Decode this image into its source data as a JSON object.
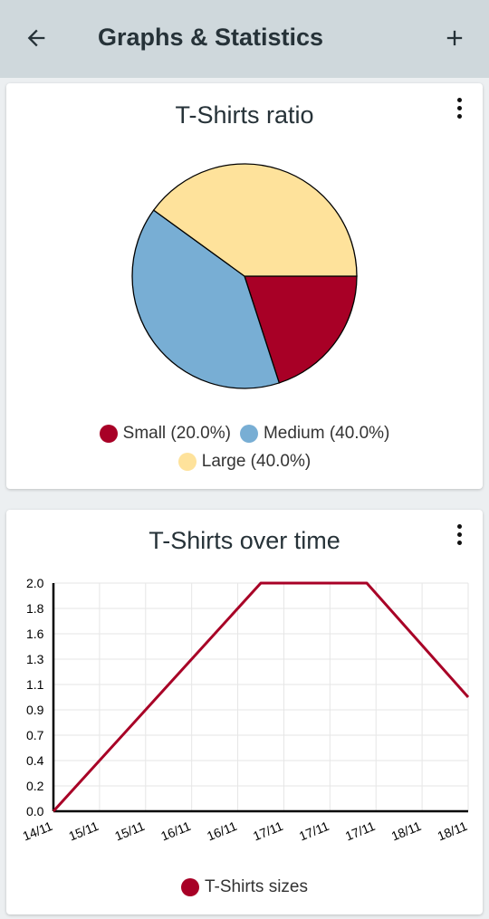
{
  "appbar": {
    "title": "Graphs & Statistics",
    "back_icon": "arrow-left-icon",
    "add_icon": "plus-icon"
  },
  "colors": {
    "small": "#a80026",
    "medium": "#78aed4",
    "large": "#fee29b",
    "line": "#a80026"
  },
  "pie_card": {
    "title": "T-Shirts ratio",
    "legend": [
      {
        "label": "Small (20.0%)",
        "color": "#a80026"
      },
      {
        "label": "Medium (40.0%)",
        "color": "#78aed4"
      },
      {
        "label": "Large (40.0%)",
        "color": "#fee29b"
      }
    ]
  },
  "line_card": {
    "title": "T-Shirts over time",
    "legend_label": "T-Shirts sizes"
  },
  "chart_data": [
    {
      "type": "pie",
      "title": "T-Shirts ratio",
      "labels": [
        "Small",
        "Medium",
        "Large"
      ],
      "values": [
        20.0,
        40.0,
        40.0
      ],
      "colors": [
        "#a80026",
        "#78aed4",
        "#fee29b"
      ]
    },
    {
      "type": "line",
      "title": "T-Shirts over time",
      "x_tick_labels": [
        "14/11",
        "15/11",
        "15/11",
        "16/11",
        "16/11",
        "17/11",
        "17/11",
        "17/11",
        "18/11",
        "18/11"
      ],
      "y_tick_labels": [
        "0.0",
        "0.2",
        "0.4",
        "0.7",
        "0.9",
        "1.1",
        "1.3",
        "1.6",
        "1.8",
        "2.0"
      ],
      "ylim": [
        0,
        2.0
      ],
      "xlim": [
        0,
        9
      ],
      "grid": true,
      "series": [
        {
          "name": "T-Shirts sizes",
          "color": "#a80026",
          "x": [
            0,
            4.5,
            6.8,
            9
          ],
          "y": [
            0,
            2.0,
            2.0,
            1.0
          ]
        }
      ]
    }
  ]
}
